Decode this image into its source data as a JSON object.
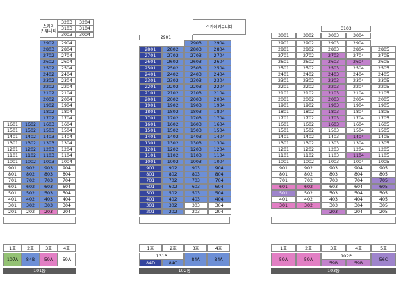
{
  "colors": {
    "navy": "#34459e",
    "blue": "#6d8fd6",
    "pink": "#e27fc4",
    "magenta": "#c281cc",
    "lavender": "#9e84cc",
    "green": "#94c274",
    "orange_dot": "#f5a623",
    "red_dot": "#d42c35",
    "blue_dot": "#2a4fb8",
    "green_dot": "#2e7d32"
  },
  "b101": {
    "name": "101동",
    "top_label": "스카이\n커뮤니티",
    "top_rows": [
      [
        "3203",
        "3204"
      ],
      [
        "3103",
        "3104"
      ],
      [
        "3003",
        "3004"
      ]
    ],
    "floors": [
      [
        "",
        "",
        "2902",
        "2904"
      ],
      [
        "",
        "",
        "2803",
        "2804"
      ],
      [
        "",
        "",
        "2702",
        "2704"
      ],
      [
        "",
        "",
        "2602",
        "2604"
      ],
      [
        "",
        "",
        "2502",
        "2504"
      ],
      [
        "",
        "",
        "2402",
        "2404"
      ],
      [
        "",
        "",
        "2302",
        "2304"
      ],
      [
        "",
        "",
        "2202",
        "2204"
      ],
      [
        "",
        "",
        "2102",
        "2104"
      ],
      [
        "",
        "",
        "2002",
        "2004"
      ],
      [
        "",
        "",
        "1902",
        "1904"
      ],
      [
        "",
        "",
        "1802",
        "1804"
      ],
      [
        "",
        "",
        "1702",
        "1704"
      ],
      [
        "1601",
        "1602",
        "1603",
        "1604"
      ],
      [
        "1501",
        "1502",
        "1503",
        "1504"
      ],
      [
        "1401",
        "1402",
        "1403",
        "1404"
      ],
      [
        "1301",
        "1302",
        "1303",
        "1304"
      ],
      [
        "1201",
        "1202",
        "1203",
        "1204"
      ],
      [
        "1101",
        "1102",
        "1103",
        "1104"
      ],
      [
        "1001",
        "1002",
        "1003",
        "1004"
      ],
      [
        "901",
        "902",
        "903",
        "904"
      ],
      [
        "801",
        "802",
        "803",
        "804"
      ],
      [
        "701",
        "702",
        "703",
        "704"
      ],
      [
        "601",
        "602",
        "603",
        "604"
      ],
      [
        "501",
        "502",
        "503",
        "504"
      ],
      [
        "401",
        "402",
        "403",
        "404"
      ],
      [
        "301",
        "302",
        "303",
        "304"
      ],
      [
        "201",
        "202",
        "203",
        "204"
      ]
    ],
    "lines": [
      "1호",
      "2호",
      "3호",
      "4호"
    ],
    "types": [
      "107A",
      "84B",
      "59A",
      "59A"
    ]
  },
  "b102": {
    "name": "102동",
    "top_left": "2901",
    "top_right": "스카이커뮤니티",
    "floors": [
      [
        "",
        "",
        "2903",
        "2904"
      ],
      [
        "2801",
        "2802",
        "2803",
        "2804"
      ],
      [
        "2701",
        "2702",
        "2703",
        "2704"
      ],
      [
        "2601",
        "2602",
        "2603",
        "2604"
      ],
      [
        "2501",
        "2502",
        "2503",
        "2504"
      ],
      [
        "2401",
        "2402",
        "2403",
        "2404"
      ],
      [
        "2301",
        "2302",
        "2303",
        "2304"
      ],
      [
        "2201",
        "2202",
        "2203",
        "2204"
      ],
      [
        "2101",
        "2102",
        "2103",
        "2104"
      ],
      [
        "2001",
        "2002",
        "2003",
        "2004"
      ],
      [
        "1901",
        "1902",
        "1903",
        "1904"
      ],
      [
        "1801",
        "1802",
        "1803",
        "1804"
      ],
      [
        "1701",
        "1702",
        "1703",
        "1704"
      ],
      [
        "1601",
        "1602",
        "1603",
        "1604"
      ],
      [
        "1501",
        "1502",
        "1503",
        "1504"
      ],
      [
        "1401",
        "1402",
        "1403",
        "1404"
      ],
      [
        "1301",
        "1302",
        "1303",
        "1304"
      ],
      [
        "1201",
        "1202",
        "1203",
        "1204"
      ],
      [
        "1101",
        "1102",
        "1103",
        "1104"
      ],
      [
        "1001",
        "1002",
        "1003",
        "1004"
      ],
      [
        "901",
        "902",
        "903",
        "904"
      ],
      [
        "801",
        "802",
        "803",
        "804"
      ],
      [
        "701",
        "702",
        "703",
        "704"
      ],
      [
        "601",
        "602",
        "603",
        "604"
      ],
      [
        "501",
        "502",
        "503",
        "504"
      ],
      [
        "401",
        "402",
        "403",
        "404"
      ],
      [
        "301",
        "302",
        "303",
        "304"
      ],
      [
        "201",
        "202",
        "203",
        "204"
      ]
    ],
    "lines": [
      "1호",
      "2호",
      "3호",
      "4호"
    ],
    "merged_type": "131P",
    "types": [
      "84D",
      "84C",
      "84A",
      "84A"
    ]
  },
  "b103": {
    "name": "103동",
    "top_label": "3103",
    "top_row": [
      "3001",
      "3002",
      "3003",
      "3004"
    ],
    "floors": [
      [
        "2901",
        "2902",
        "2903",
        "2904",
        ""
      ],
      [
        "2801",
        "2802",
        "2803",
        "2804",
        "2805"
      ],
      [
        "2701",
        "2702",
        "2703",
        "2704",
        "2705"
      ],
      [
        "2601",
        "2602",
        "2603",
        "2604",
        "2605"
      ],
      [
        "2501",
        "2502",
        "2503",
        "2504",
        "2505"
      ],
      [
        "2401",
        "2402",
        "2403",
        "2404",
        "2405"
      ],
      [
        "2301",
        "2302",
        "2303",
        "2304",
        "2305"
      ],
      [
        "2201",
        "2202",
        "2203",
        "2204",
        "2205"
      ],
      [
        "2101",
        "2102",
        "2103",
        "2104",
        "2105"
      ],
      [
        "2001",
        "2002",
        "2003",
        "2004",
        "2005"
      ],
      [
        "1901",
        "1902",
        "1903",
        "1904",
        "1905"
      ],
      [
        "1801",
        "1802",
        "1803",
        "1804",
        "1805"
      ],
      [
        "1701",
        "1702",
        "1703",
        "1704",
        "1705"
      ],
      [
        "1601",
        "1602",
        "1603",
        "1604",
        "1605"
      ],
      [
        "1501",
        "1502",
        "1503",
        "1504",
        "1505"
      ],
      [
        "1401",
        "1402",
        "1403",
        "1404",
        "1405"
      ],
      [
        "1301",
        "1302",
        "1303",
        "1304",
        "1305"
      ],
      [
        "1201",
        "1202",
        "1203",
        "1204",
        "1205"
      ],
      [
        "1101",
        "1102",
        "1103",
        "1104",
        "1105"
      ],
      [
        "1001",
        "1002",
        "1003",
        "1004",
        "1005"
      ],
      [
        "901",
        "902",
        "903",
        "904",
        "905"
      ],
      [
        "801",
        "802",
        "803",
        "804",
        "805"
      ],
      [
        "701",
        "702",
        "703",
        "704",
        "705"
      ],
      [
        "601",
        "602",
        "603",
        "604",
        "605"
      ],
      [
        "501",
        "502",
        "503",
        "504",
        "505"
      ],
      [
        "401",
        "402",
        "403",
        "404",
        "405"
      ],
      [
        "301",
        "302",
        "303",
        "304",
        "305"
      ],
      [
        "",
        "",
        "203",
        "204",
        "205"
      ]
    ],
    "lines": [
      "1호",
      "2호",
      "3호",
      "4호",
      "5호"
    ],
    "merged_type": "102P",
    "types": [
      "59A",
      "59A",
      "59B",
      "59B",
      "56C"
    ]
  }
}
